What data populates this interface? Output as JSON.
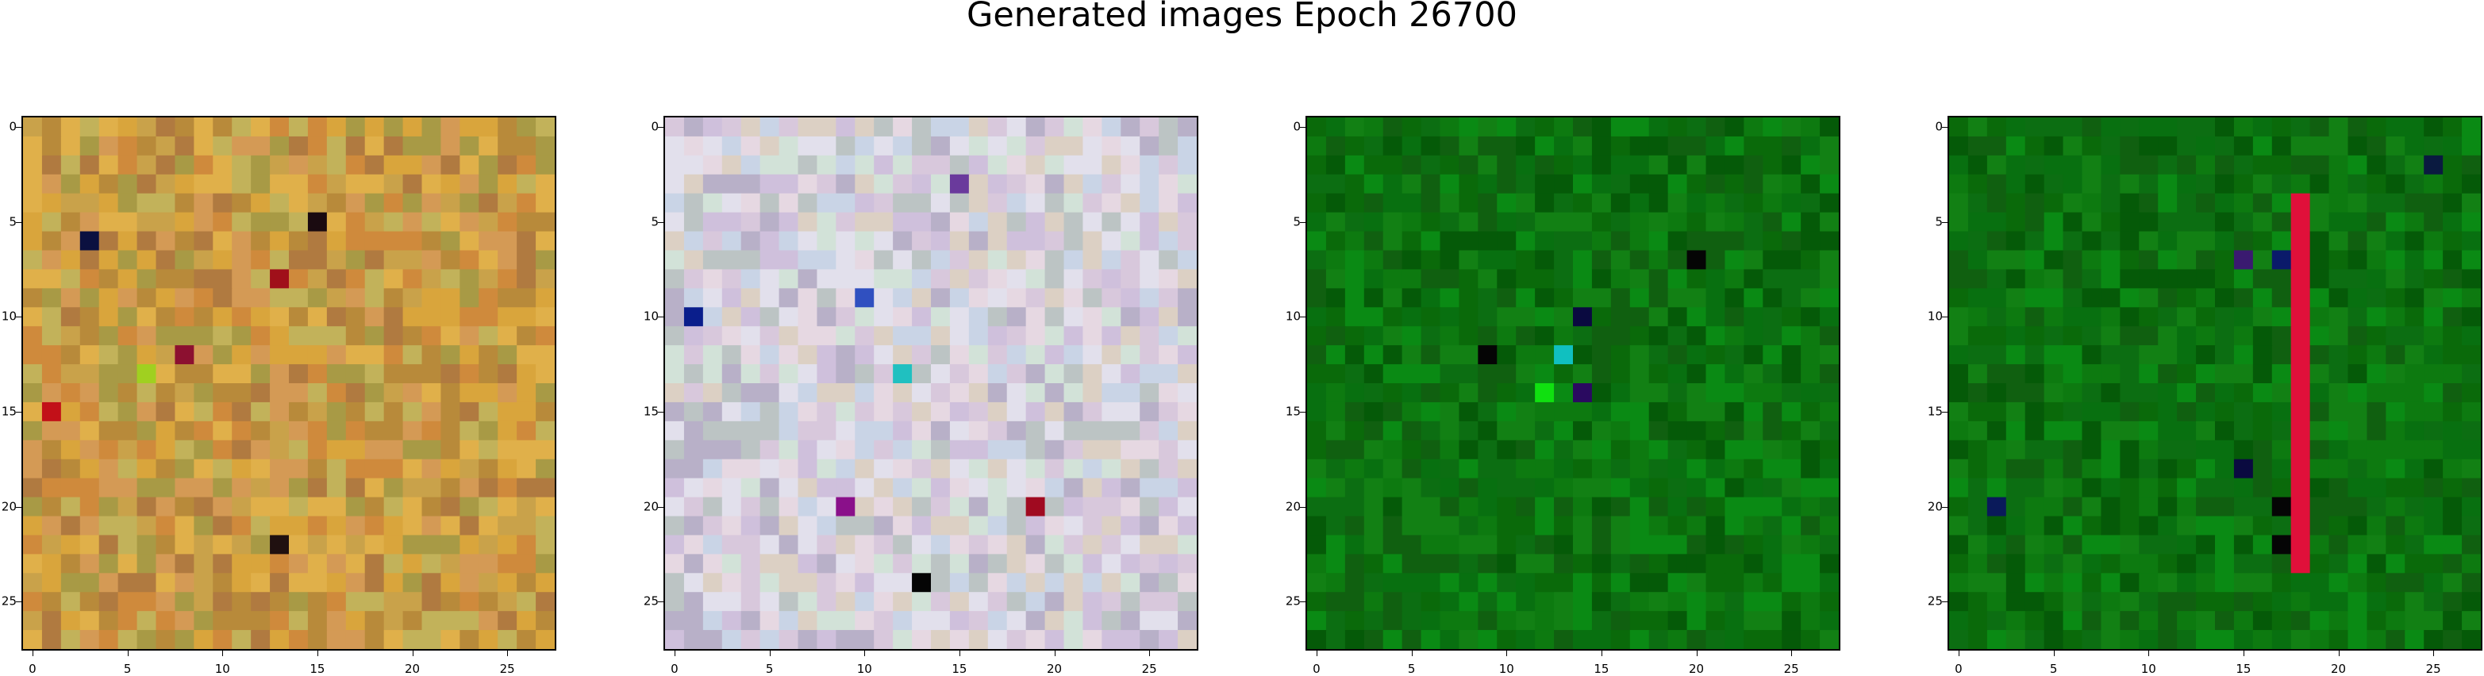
{
  "figure": {
    "title": "Generated images Epoch 26700"
  },
  "chart_data": [
    {
      "type": "heatmap",
      "grid_size": 28,
      "xticks": [
        "0",
        "5",
        "10",
        "15",
        "20",
        "25"
      ],
      "yticks": [
        "0",
        "5",
        "10",
        "15",
        "20",
        "25"
      ],
      "xlim": [
        -0.5,
        27.5
      ],
      "ylim": [
        27.5,
        -0.5
      ],
      "palette": [
        "#c9a24a",
        "#d9a53c",
        "#b88a3a",
        "#e0b04a",
        "#a89a45",
        "#cf8a3c",
        "#b07a40",
        "#d49a55",
        "#c2b25a"
      ],
      "accents": [
        {
          "row": 6,
          "col": 3,
          "color": "#0b1040"
        },
        {
          "row": 5,
          "col": 15,
          "color": "#1a0a10"
        },
        {
          "row": 12,
          "col": 8,
          "color": "#8c1030"
        },
        {
          "row": 15,
          "col": 1,
          "color": "#c21018"
        },
        {
          "row": 8,
          "col": 13,
          "color": "#a0101a"
        },
        {
          "row": 13,
          "col": 6,
          "color": "#a0d020"
        },
        {
          "row": 22,
          "col": 13,
          "color": "#201010"
        }
      ]
    },
    {
      "type": "heatmap",
      "grid_size": 28,
      "xticks": [
        "0",
        "5",
        "10",
        "15",
        "20",
        "25"
      ],
      "yticks": [
        "0",
        "5",
        "10",
        "15",
        "20",
        "25"
      ],
      "xlim": [
        -0.5,
        27.5
      ],
      "ylim": [
        27.5,
        -0.5
      ],
      "palette": [
        "#d8c8dc",
        "#c9d4e6",
        "#e6d8e2",
        "#bcc4c4",
        "#d2e2d8",
        "#cfc0dc",
        "#e2e0ec",
        "#b8b0c8",
        "#dcd0c4"
      ],
      "accents": [
        {
          "row": 10,
          "col": 1,
          "color": "#0a1e8c"
        },
        {
          "row": 9,
          "col": 10,
          "color": "#3050c0"
        },
        {
          "row": 13,
          "col": 12,
          "color": "#20c0c0"
        },
        {
          "row": 20,
          "col": 19,
          "color": "#a00a20"
        },
        {
          "row": 24,
          "col": 13,
          "color": "#050505"
        },
        {
          "row": 20,
          "col": 9,
          "color": "#8a108a"
        },
        {
          "row": 3,
          "col": 15,
          "color": "#6a3a9c"
        }
      ]
    },
    {
      "type": "heatmap",
      "grid_size": 28,
      "xticks": [
        "0",
        "5",
        "10",
        "15",
        "20",
        "25"
      ],
      "yticks": [
        "0",
        "5",
        "10",
        "15",
        "20",
        "25"
      ],
      "xlim": [
        -0.5,
        27.5
      ],
      "ylim": [
        27.5,
        -0.5
      ],
      "palette": [
        "#0a6a0a",
        "#0d7a10",
        "#087010",
        "#106010",
        "#0a8a14",
        "#055a08",
        "#128014",
        "#0c6e12"
      ],
      "accents": [
        {
          "row": 10,
          "col": 14,
          "color": "#0a0a40"
        },
        {
          "row": 12,
          "col": 13,
          "color": "#10c0c0"
        },
        {
          "row": 14,
          "col": 14,
          "color": "#2a0a60"
        },
        {
          "row": 7,
          "col": 20,
          "color": "#050505"
        },
        {
          "row": 12,
          "col": 9,
          "color": "#050505"
        },
        {
          "row": 14,
          "col": 12,
          "color": "#10e010"
        }
      ]
    },
    {
      "type": "heatmap",
      "grid_size": 28,
      "xticks": [
        "0",
        "5",
        "10",
        "15",
        "20",
        "25"
      ],
      "yticks": [
        "0",
        "5",
        "10",
        "15",
        "20",
        "25"
      ],
      "xlim": [
        -0.5,
        27.5
      ],
      "ylim": [
        27.5,
        -0.5
      ],
      "palette": [
        "#0a6a0a",
        "#0d7a10",
        "#087010",
        "#106010",
        "#0a8a14",
        "#055a08",
        "#128014",
        "#0c6e12"
      ],
      "stripe": {
        "col": 18,
        "from_row": 4,
        "to_row": 23,
        "color": "#e0103a"
      },
      "accents": [
        {
          "row": 7,
          "col": 15,
          "color": "#3a1a70"
        },
        {
          "row": 7,
          "col": 17,
          "color": "#0a1a6a"
        },
        {
          "row": 18,
          "col": 15,
          "color": "#0a0a40"
        },
        {
          "row": 20,
          "col": 17,
          "color": "#050505"
        },
        {
          "row": 22,
          "col": 17,
          "color": "#050505"
        },
        {
          "row": 20,
          "col": 2,
          "color": "#0a1a5a"
        },
        {
          "row": 2,
          "col": 25,
          "color": "#0a1a40"
        }
      ]
    }
  ]
}
